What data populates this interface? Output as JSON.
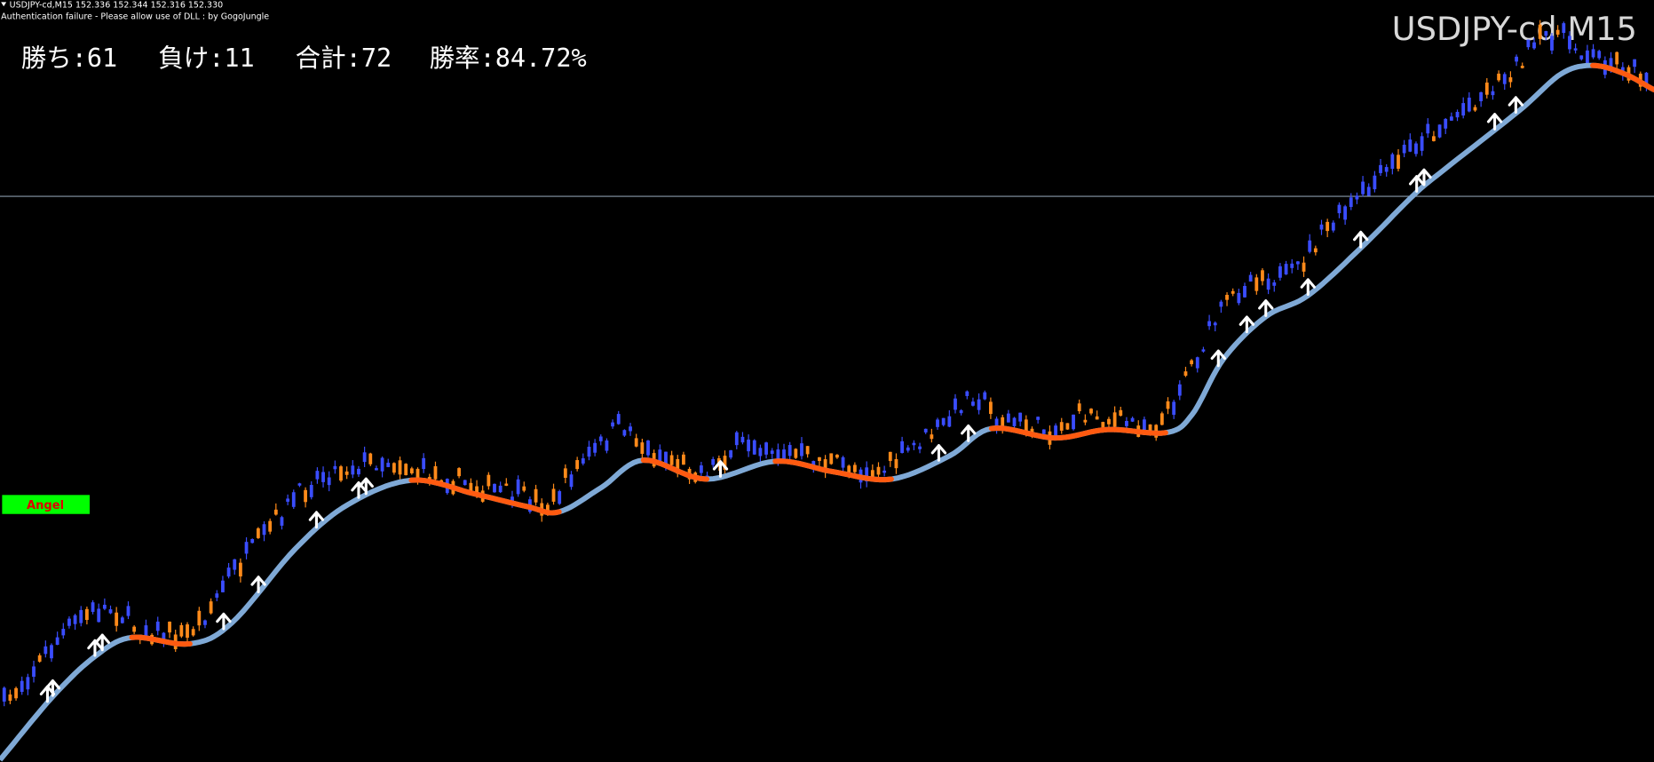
{
  "header": {
    "symbol_line": "USDJPY-cd,M15  152.336 152.344 152.316 152.330",
    "notice": "Authentication failure - Please allow use of DLL : by GogoJungle"
  },
  "title": "USDJPY-cd M15",
  "stats": [
    "勝ち:61",
    "負け:11",
    "合計:72",
    "勝率:84.72%"
  ],
  "button": "Angel"
}
